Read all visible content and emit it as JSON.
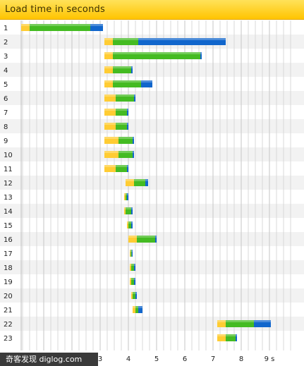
{
  "header": {
    "title": "Load time in seconds"
  },
  "watermark": {
    "text": "奇客发现 diglog.com"
  },
  "colors": {
    "segment_1": "#ffcc33",
    "segment_2": "#44bb22",
    "segment_3": "#1166cc",
    "row_alt": "#f2f2f2",
    "grid": "#d8d8d8"
  },
  "chart_data": {
    "type": "bar",
    "orientation": "horizontal",
    "stacked": true,
    "title": "Load time in seconds",
    "xlabel": "",
    "ylabel": "",
    "xlim": [
      0.2,
      9.9
    ],
    "grid": true,
    "categories": [
      "1",
      "2",
      "3",
      "4",
      "5",
      "6",
      "7",
      "8",
      "9",
      "10",
      "11",
      "12",
      "13",
      "14",
      "15",
      "16",
      "17",
      "18",
      "19",
      "20",
      "21",
      "22",
      "23"
    ],
    "start": [
      0.2,
      3.15,
      3.15,
      3.15,
      3.15,
      3.15,
      3.15,
      3.15,
      3.15,
      3.15,
      3.15,
      3.9,
      3.85,
      3.85,
      3.95,
      4.0,
      4.05,
      4.05,
      4.05,
      4.1,
      4.15,
      7.15,
      7.15
    ],
    "series": [
      {
        "values": [
          0.3,
          0.3,
          0.3,
          0.3,
          0.3,
          0.4,
          0.4,
          0.4,
          0.5,
          0.5,
          0.4,
          0.3,
          0.05,
          0.05,
          0.05,
          0.3,
          0.03,
          0.05,
          0.05,
          0.05,
          0.1,
          0.3,
          0.3
        ]
      },
      {
        "values": [
          2.15,
          0.9,
          3.1,
          0.65,
          1.0,
          0.65,
          0.4,
          0.4,
          0.5,
          0.5,
          0.4,
          0.4,
          0.05,
          0.2,
          0.1,
          0.65,
          0.04,
          0.1,
          0.1,
          0.1,
          0.1,
          1.0,
          0.35
        ]
      },
      {
        "values": [
          0.45,
          3.1,
          0.05,
          0.05,
          0.4,
          0.05,
          0.05,
          0.05,
          0.05,
          0.05,
          0.05,
          0.1,
          0.05,
          0.05,
          0.05,
          0.05,
          0.03,
          0.05,
          0.05,
          0.05,
          0.15,
          0.6,
          0.05
        ]
      }
    ],
    "xticks": [
      {
        "value": 3,
        "label": "3"
      },
      {
        "value": 4,
        "label": "4"
      },
      {
        "value": 5,
        "label": "5"
      },
      {
        "value": 6,
        "label": "6"
      },
      {
        "value": 7,
        "label": "7"
      },
      {
        "value": 8,
        "label": "8"
      },
      {
        "value": 9,
        "label": "9 s"
      }
    ]
  }
}
